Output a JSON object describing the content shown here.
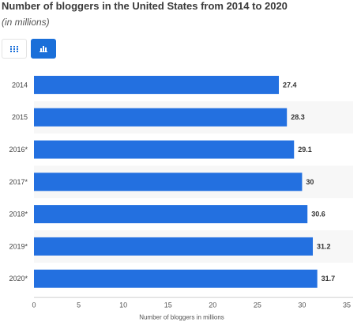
{
  "header": {
    "title": "Number of bloggers in the United States from 2014 to 2020",
    "subtitle": "(in millions)"
  },
  "toolbar": {
    "table_view_icon": "grid-icon",
    "chart_view_icon": "bar-chart-icon",
    "active_view": "chart"
  },
  "colors": {
    "bar": "#2370e0",
    "accent": "#1a6fd9",
    "stripe": "#f7f7f7"
  },
  "chart_data": {
    "type": "bar",
    "orientation": "horizontal",
    "categories": [
      "2014",
      "2015",
      "2016*",
      "2017*",
      "2018*",
      "2019*",
      "2020*"
    ],
    "values": [
      27.4,
      28.3,
      29.1,
      30,
      30.6,
      31.2,
      31.7
    ],
    "value_labels": [
      "27.4",
      "28.3",
      "29.1",
      "30",
      "30.6",
      "31.2",
      "31.7"
    ],
    "xlabel": "Number of bloggers in millions",
    "ylabel": "",
    "xlim": [
      0,
      35
    ],
    "xticks": [
      0,
      5,
      10,
      15,
      20,
      25,
      30,
      35
    ],
    "grid": false,
    "legend": "none"
  }
}
